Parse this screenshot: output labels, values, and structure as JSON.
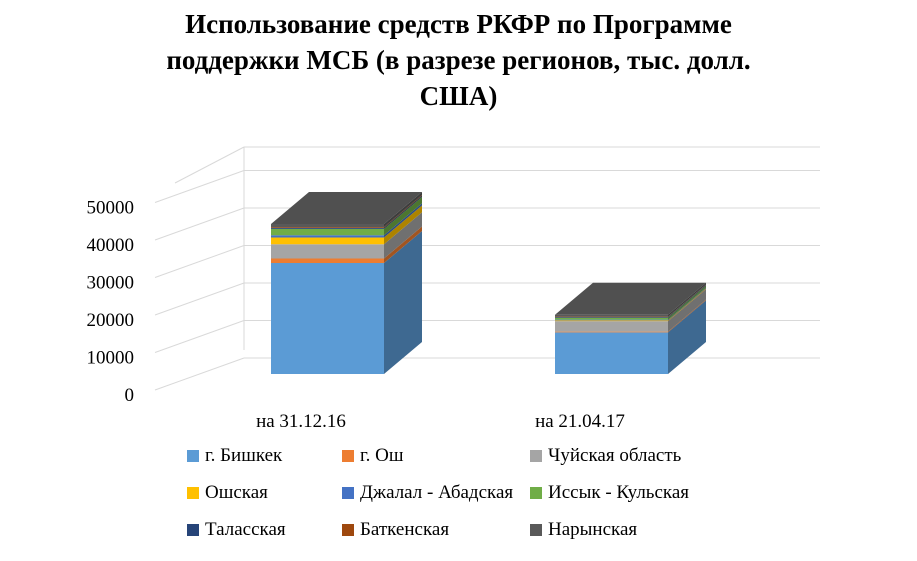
{
  "chart_data": {
    "type": "bar",
    "stacked": true,
    "three_d": true,
    "title_lines": [
      "Использование средств РКФР по Программе",
      "поддержки МСБ (в разрезе регионов, тыс. долл.",
      "США)"
    ],
    "categories": [
      "на 31.12.16",
      "на 21.04.17"
    ],
    "ylim": [
      0,
      50000
    ],
    "yticks": [
      0,
      10000,
      20000,
      30000,
      40000,
      50000
    ],
    "ytick_labels": [
      "0",
      "10000",
      "20000",
      "30000",
      "40000",
      "50000"
    ],
    "grid": true,
    "legend_position": "bottom",
    "series": [
      {
        "name": "г. Бишкек",
        "color": "#5B9BD5",
        "values": [
          29600,
          11100
        ]
      },
      {
        "name": "г. Ош",
        "color": "#ED7D31",
        "values": [
          1200,
          200
        ]
      },
      {
        "name": "Чуйская область",
        "color": "#A5A5A5",
        "values": [
          3800,
          2800
        ]
      },
      {
        "name": "Ошская",
        "color": "#FFC000",
        "values": [
          1800,
          200
        ]
      },
      {
        "name": "Джалал - Абадская",
        "color": "#4472C4",
        "values": [
          600,
          200
        ]
      },
      {
        "name": "Иссык - Кульская",
        "color": "#70AD47",
        "values": [
          1700,
          500
        ]
      },
      {
        "name": "Таласская",
        "color": "#264478",
        "values": [
          300,
          200
        ]
      },
      {
        "name": "Баткенская",
        "color": "#9E480E",
        "values": [
          200,
          100
        ]
      },
      {
        "name": "Нарынская",
        "color": "#595959",
        "values": [
          800,
          500
        ]
      }
    ]
  }
}
